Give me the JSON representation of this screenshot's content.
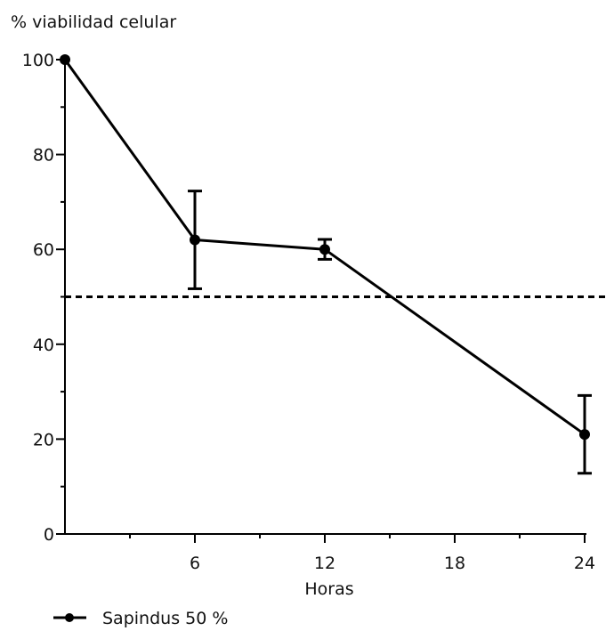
{
  "chart_data": {
    "type": "line",
    "ylabel": "% viabilidad celular",
    "xlabel": "Horas",
    "xlim": [
      0,
      24
    ],
    "ylim": [
      0,
      100
    ],
    "x_ticks": [
      6,
      12,
      18,
      24
    ],
    "y_ticks": [
      0,
      20,
      40,
      60,
      80,
      100
    ],
    "y_tick_labels": [
      "0",
      "20",
      "40",
      "60",
      "80",
      "100"
    ],
    "x_tick_labels": [
      "6",
      "12",
      "18",
      "24"
    ],
    "series": [
      {
        "name": "Sapindus 50 %",
        "x": [
          0,
          6,
          12,
          24
        ],
        "y": [
          100,
          62,
          60,
          21
        ],
        "error": [
          0,
          10.3,
          2.1,
          8.2
        ],
        "color": "#000000"
      }
    ],
    "reference_line": {
      "y": 50,
      "style": "dashed"
    },
    "grid": false,
    "legend_position": "bottom-left"
  }
}
